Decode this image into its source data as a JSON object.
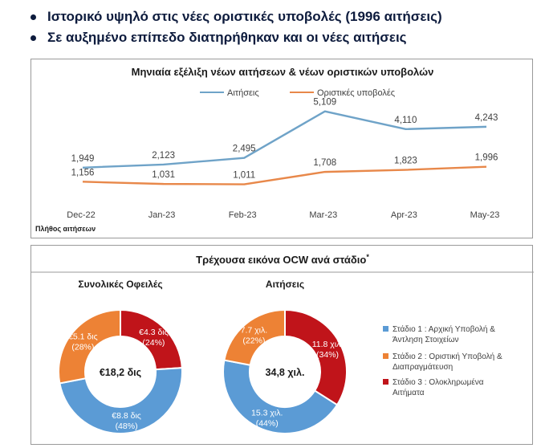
{
  "header": {
    "bullets": [
      "Ιστορικό υψηλό στις νέες οριστικές υποβολές (1996 αιτήσεις)",
      "Σε αυξημένο επίπεδο διατηρήθηκαν και οι νέες αιτήσεις"
    ]
  },
  "chart_data": [
    {
      "type": "line",
      "title": "Μηνιαία εξέλιξη νέων αιτήσεων & νέων οριστικών υποβολών",
      "categories": [
        "Dec-22",
        "Jan-23",
        "Feb-23",
        "Mar-23",
        "Apr-23",
        "May-23"
      ],
      "series": [
        {
          "name": "Αιτήσεις",
          "color": "#6fa3c8",
          "values": [
            1949,
            2123,
            2495,
            5109,
            4110,
            4243
          ],
          "labels": [
            "1,949",
            "2,123",
            "2,495",
            "5,109",
            "4,110",
            "4,243"
          ]
        },
        {
          "name": "Οριστικές υποβολές",
          "color": "#e8884a",
          "values": [
            1156,
            1031,
            1011,
            1708,
            1823,
            1996
          ],
          "labels": [
            "1,156",
            "1,031",
            "1,011",
            "1,708",
            "1,823",
            "1,996"
          ]
        }
      ],
      "ylim": [
        0,
        5500
      ],
      "grid": false,
      "legend": "top-center",
      "footnote": "Πλήθος αιτήσεων"
    },
    {
      "type": "pie",
      "title": "Τρέχουσα εικόνα OCW ανά στάδιο",
      "title_mark": "*",
      "charts": [
        {
          "title": "Συνολικές Οφειλές",
          "center_label": "€18,2 δις",
          "slices": [
            {
              "value": 24,
              "line1": "€4.3 δις",
              "line2": "(24%)",
              "color": "#c0141a"
            },
            {
              "value": 48,
              "line1": "€8.8 δις",
              "line2": "(48%)",
              "color": "#5b9bd5"
            },
            {
              "value": 28,
              "line1": "€5.1 δις",
              "line2": "(28%)",
              "color": "#ed8235"
            }
          ]
        },
        {
          "title": "Αιτήσεις",
          "center_label": "34,8 χιλ.",
          "slices": [
            {
              "value": 34,
              "line1": "11.8 χιλ.",
              "line2": "(34%)",
              "color": "#c0141a"
            },
            {
              "value": 44,
              "line1": "15.3 χιλ.",
              "line2": "(44%)",
              "color": "#5b9bd5"
            },
            {
              "value": 22,
              "line1": "7.7 χιλ.",
              "line2": "(22%)",
              "color": "#ed8235"
            }
          ]
        }
      ],
      "legend": {
        "placement": "right",
        "items": [
          {
            "line1": "Στάδιο 1 : Αρχική Υποβολή &",
            "line2": "Άντληση Στοιχείων",
            "color": "#5b9bd5"
          },
          {
            "line1": "Στάδιο 2 : Οριστική Υποβολή &",
            "line2": "Διαπραγμάτευση",
            "color": "#ed8235"
          },
          {
            "line1": "Στάδιο 3 : Ολοκληρωμένα",
            "line2": "Αιτήματα",
            "color": "#c0141a"
          }
        ]
      }
    }
  ]
}
